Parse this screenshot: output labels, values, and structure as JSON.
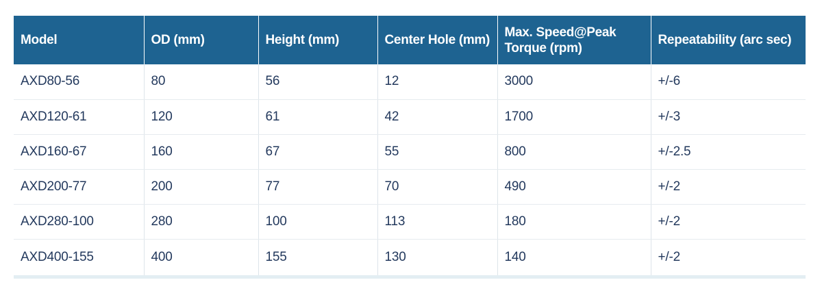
{
  "table": {
    "headers": [
      "Model",
      "OD (mm)",
      "Height (mm)",
      "Center Hole (mm)",
      "Max. Speed@Peak Torque (rpm)",
      "Repeatability (arc sec)"
    ],
    "rows": [
      [
        "AXD80-56",
        "80",
        "56",
        "12",
        "3000",
        "+/-6"
      ],
      [
        "AXD120-61",
        "120",
        "61",
        "42",
        "1700",
        "+/-3"
      ],
      [
        "AXD160-67",
        "160",
        "67",
        "55",
        "800",
        "+/-2.5"
      ],
      [
        "AXD200-77",
        "200",
        "77",
        "70",
        "490",
        "+/-2"
      ],
      [
        "AXD280-100",
        "280",
        "100",
        "113",
        "180",
        "+/-2"
      ],
      [
        "AXD400-155",
        "400",
        "155",
        "130",
        "140",
        "+/-2"
      ]
    ]
  },
  "colors": {
    "header_bg": "#1e6391",
    "header_text": "#ffffff",
    "cell_text": "#23395d"
  }
}
